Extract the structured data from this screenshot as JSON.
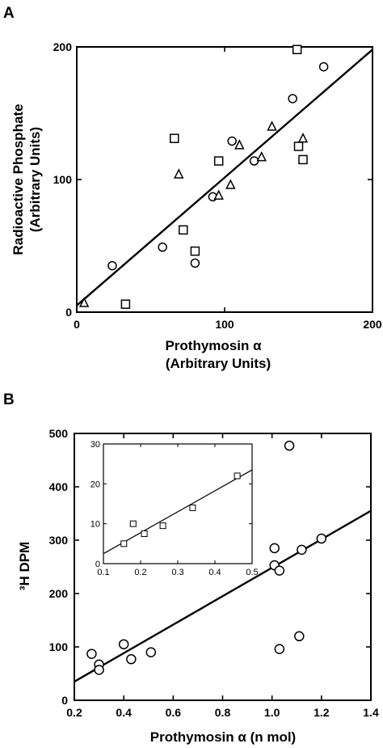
{
  "chart_data": [
    {
      "panel": "A",
      "type": "scatter",
      "xlabel_line1": "Prothymosin α",
      "xlabel_line2": "(Arbitrary Units)",
      "ylabel_line1": "Radioactive Phosphate",
      "ylabel_line2": "(Arbitrary Units)",
      "xlim": [
        0,
        200
      ],
      "ylim": [
        0,
        200
      ],
      "xticks": [
        "0",
        "100",
        "200"
      ],
      "yticks": [
        "0",
        "100",
        "200"
      ],
      "series": [
        {
          "marker": "circle",
          "points": [
            [
              24,
              35
            ],
            [
              58,
              49
            ],
            [
              80,
              37
            ],
            [
              92,
              87
            ],
            [
              105,
              129
            ],
            [
              120,
              114
            ],
            [
              146,
              161
            ],
            [
              167,
              185
            ]
          ]
        },
        {
          "marker": "square",
          "points": [
            [
              33,
              6
            ],
            [
              66,
              131
            ],
            [
              72,
              62
            ],
            [
              80,
              46
            ],
            [
              96,
              114
            ],
            [
              150,
              125
            ],
            [
              153,
              115
            ],
            [
              149,
              198
            ]
          ]
        },
        {
          "marker": "triangle",
          "points": [
            [
              5,
              7
            ],
            [
              69,
              104
            ],
            [
              96,
              88
            ],
            [
              104,
              96
            ],
            [
              110,
              126
            ],
            [
              125,
              117
            ],
            [
              132,
              140
            ],
            [
              153,
              131
            ]
          ]
        }
      ],
      "fit_line": {
        "x": [
          0,
          200
        ],
        "y": [
          5,
          198
        ]
      }
    },
    {
      "panel": "B",
      "type": "scatter",
      "xlabel": "Prothymosin α (n mol)",
      "ylabel": "³H DPM",
      "xlim": [
        0.2,
        1.4
      ],
      "ylim": [
        0,
        500
      ],
      "xticks": [
        "0.2",
        "0.4",
        "0.6",
        "0.8",
        "1.0",
        "1.2",
        "1.4"
      ],
      "yticks": [
        "0",
        "100",
        "200",
        "300",
        "400",
        "500"
      ],
      "points": [
        [
          0.27,
          87
        ],
        [
          0.3,
          67
        ],
        [
          0.3,
          57
        ],
        [
          0.4,
          105
        ],
        [
          0.43,
          77
        ],
        [
          0.51,
          90
        ],
        [
          1.01,
          285
        ],
        [
          1.01,
          253
        ],
        [
          1.03,
          243
        ],
        [
          1.03,
          96
        ],
        [
          1.07,
          477
        ],
        [
          1.11,
          120
        ],
        [
          1.12,
          282
        ],
        [
          1.2,
          303
        ]
      ],
      "fit_line": {
        "x": [
          0.2,
          1.4
        ],
        "y": [
          35,
          355
        ]
      },
      "inset": {
        "xlim": [
          0.1,
          0.5
        ],
        "ylim": [
          0,
          30
        ],
        "xticks": [
          "0.1",
          "0.2",
          "0.3",
          "0.4",
          "0.5"
        ],
        "yticks": [
          "0",
          "10",
          "20",
          "30"
        ],
        "points": [
          [
            0.155,
            5
          ],
          [
            0.18,
            10
          ],
          [
            0.21,
            7.5
          ],
          [
            0.26,
            9.5
          ],
          [
            0.34,
            14
          ],
          [
            0.46,
            22
          ]
        ],
        "fit_line": {
          "x": [
            0.1,
            0.5
          ],
          "y": [
            2.5,
            23.5
          ]
        }
      }
    }
  ]
}
